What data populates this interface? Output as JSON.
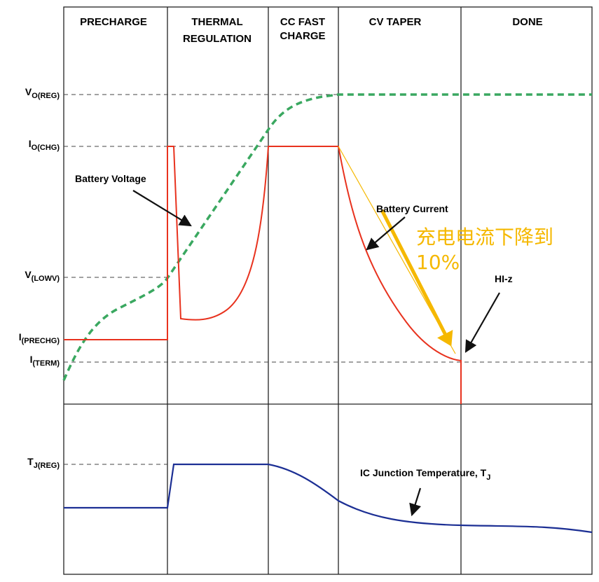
{
  "phases": [
    {
      "lines": [
        "PRECHARGE"
      ]
    },
    {
      "lines": [
        "THERMAL",
        "REGULATION"
      ]
    },
    {
      "lines": [
        "CC FAST",
        "CHARGE"
      ]
    },
    {
      "lines": [
        "CV TAPER"
      ]
    },
    {
      "lines": [
        "DONE"
      ]
    }
  ],
  "levels": [
    {
      "symbol": "V",
      "subscript": "O(REG)"
    },
    {
      "symbol": "I",
      "subscript": "O(CHG)"
    },
    {
      "symbol": "V",
      "subscript": "(LOWV)"
    },
    {
      "symbol": "I",
      "subscript": "(PRECHG)"
    },
    {
      "symbol": "I",
      "subscript": "(TERM)"
    },
    {
      "symbol": "T",
      "subscript": "J(REG)"
    }
  ],
  "annotations": {
    "battery_voltage": "Battery Voltage",
    "battery_current": "Battery Current",
    "note_lines": [
      "充电电流下降到",
      "10%"
    ],
    "hiz": "HI-z",
    "junction_temp": {
      "text": "IC Junction Temperature, T",
      "subscript": "J"
    }
  }
}
